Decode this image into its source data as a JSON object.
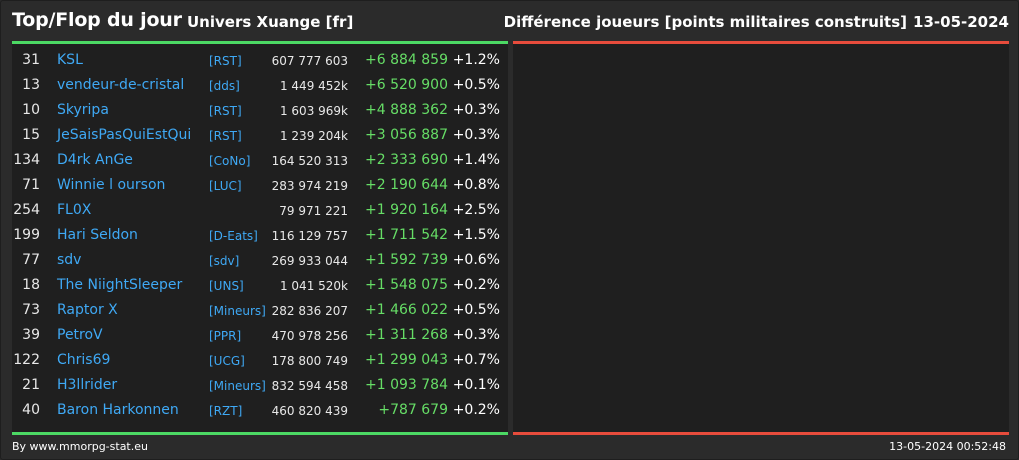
{
  "header": {
    "title": "Top/Flop du jour",
    "universe": "Univers Xuange [fr]",
    "metric": "Différence joueurs [points militaires construits]",
    "date": "13-05-2024"
  },
  "colors": {
    "top_accent": "#4cd964",
    "flop_accent": "#e74c3c",
    "name_link": "#3fa9f5",
    "positive_diff": "#66dd66"
  },
  "top_rows": [
    {
      "rank": "31",
      "name": "KSL",
      "alliance": "[RST]",
      "points": "607 777 603",
      "diff": "+6 884 859",
      "pct": "+1.2%"
    },
    {
      "rank": "13",
      "name": "vendeur-de-cristal",
      "alliance": "[dds]",
      "points": "1 449 452k",
      "diff": "+6 520 900",
      "pct": "+0.5%"
    },
    {
      "rank": "10",
      "name": "Skyripa",
      "alliance": "[RST]",
      "points": "1 603 969k",
      "diff": "+4 888 362",
      "pct": "+0.3%"
    },
    {
      "rank": "15",
      "name": "JeSaisPasQuiEstQui",
      "alliance": "[RST]",
      "points": "1 239 204k",
      "diff": "+3 056 887",
      "pct": "+0.3%"
    },
    {
      "rank": "134",
      "name": "D4rk AnGe",
      "alliance": "[CoNo]",
      "points": "164 520 313",
      "diff": "+2 333 690",
      "pct": "+1.4%"
    },
    {
      "rank": "71",
      "name": "Winnie l ourson",
      "alliance": "[LUC]",
      "points": "283 974 219",
      "diff": "+2 190 644",
      "pct": "+0.8%"
    },
    {
      "rank": "254",
      "name": "FL0X",
      "alliance": "",
      "points": "79 971 221",
      "diff": "+1 920 164",
      "pct": "+2.5%"
    },
    {
      "rank": "199",
      "name": "Hari Seldon",
      "alliance": "[D-Eats]",
      "points": "116 129 757",
      "diff": "+1 711 542",
      "pct": "+1.5%"
    },
    {
      "rank": "77",
      "name": "sdv",
      "alliance": "[sdv]",
      "points": "269 933 044",
      "diff": "+1 592 739",
      "pct": "+0.6%"
    },
    {
      "rank": "18",
      "name": "The NiightSleeper",
      "alliance": "[UNS]",
      "points": "1 041 520k",
      "diff": "+1 548 075",
      "pct": "+0.2%"
    },
    {
      "rank": "73",
      "name": "Raptor X",
      "alliance": "[Mineurs]",
      "points": "282 836 207",
      "diff": "+1 466 022",
      "pct": "+0.5%"
    },
    {
      "rank": "39",
      "name": "PetroV",
      "alliance": "[PPR]",
      "points": "470 978 256",
      "diff": "+1 311 268",
      "pct": "+0.3%"
    },
    {
      "rank": "122",
      "name": "Chris69",
      "alliance": "[UCG]",
      "points": "178 800 749",
      "diff": "+1 299 043",
      "pct": "+0.7%"
    },
    {
      "rank": "21",
      "name": "H3llrider",
      "alliance": "[Mineurs]",
      "points": "832 594 458",
      "diff": "+1 093 784",
      "pct": "+0.1%"
    },
    {
      "rank": "40",
      "name": "Baron Harkonnen",
      "alliance": "[RZT]",
      "points": "460 820 439",
      "diff": "+787 679",
      "pct": "+0.2%"
    }
  ],
  "footer": {
    "credit": "By www.mmorpg-stat.eu",
    "timestamp": "13-05-2024 00:52:48"
  }
}
